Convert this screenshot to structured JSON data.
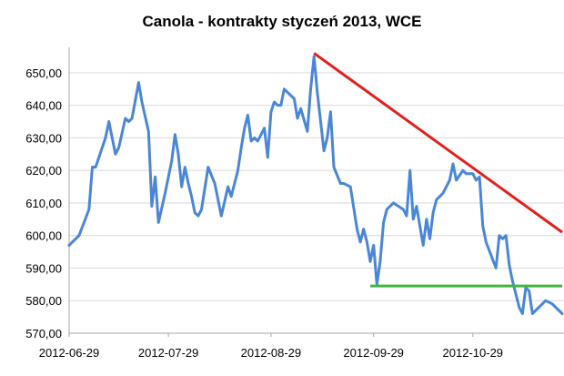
{
  "chart_data": {
    "type": "line",
    "title": "Canola - kontrakty styczeń 2013, WCE",
    "xlabel": "",
    "ylabel": "",
    "ylim": [
      570,
      655
    ],
    "yticks": [
      570,
      580,
      590,
      600,
      610,
      620,
      630,
      640,
      650
    ],
    "ytick_labels": [
      "570,00",
      "580,00",
      "590,00",
      "600,00",
      "610,00",
      "620,00",
      "630,00",
      "640,00",
      "650,00"
    ],
    "xticks": [
      "2012-06-29",
      "2012-07-29",
      "2012-08-29",
      "2012-09-29",
      "2012-10-29"
    ],
    "xlim": [
      "2012-06-29",
      "2012-11-25"
    ],
    "grid": true,
    "legend": "none",
    "colors": {
      "series": "#4a86d8",
      "resistance": "#e0201c",
      "support": "#3db83a",
      "grid": "#d9d9d9"
    },
    "series": [
      {
        "points": [
          [
            "2012-06-29",
            597
          ],
          [
            "2012-07-02",
            600
          ],
          [
            "2012-07-05",
            608
          ],
          [
            "2012-07-06",
            621
          ],
          [
            "2012-07-07",
            621
          ],
          [
            "2012-07-10",
            630
          ],
          [
            "2012-07-11",
            635
          ],
          [
            "2012-07-13",
            625
          ],
          [
            "2012-07-14",
            627
          ],
          [
            "2012-07-16",
            636
          ],
          [
            "2012-07-17",
            635
          ],
          [
            "2012-07-18",
            636
          ],
          [
            "2012-07-20",
            647
          ],
          [
            "2012-07-21",
            641
          ],
          [
            "2012-07-23",
            632
          ],
          [
            "2012-07-24",
            609
          ],
          [
            "2012-07-25",
            618
          ],
          [
            "2012-07-26",
            604
          ],
          [
            "2012-07-28",
            613
          ],
          [
            "2012-07-30",
            623
          ],
          [
            "2012-07-31",
            631
          ],
          [
            "2012-08-01",
            625
          ],
          [
            "2012-08-02",
            615
          ],
          [
            "2012-08-03",
            621
          ],
          [
            "2012-08-04",
            616
          ],
          [
            "2012-08-05",
            612
          ],
          [
            "2012-08-06",
            607
          ],
          [
            "2012-08-07",
            606
          ],
          [
            "2012-08-08",
            608
          ],
          [
            "2012-08-10",
            621
          ],
          [
            "2012-08-12",
            616
          ],
          [
            "2012-08-14",
            606
          ],
          [
            "2012-08-16",
            615
          ],
          [
            "2012-08-17",
            612
          ],
          [
            "2012-08-19",
            620
          ],
          [
            "2012-08-20",
            627
          ],
          [
            "2012-08-21",
            633
          ],
          [
            "2012-08-22",
            637
          ],
          [
            "2012-08-23",
            629
          ],
          [
            "2012-08-24",
            630
          ],
          [
            "2012-08-25",
            629
          ],
          [
            "2012-08-27",
            633
          ],
          [
            "2012-08-28",
            624
          ],
          [
            "2012-08-29",
            638
          ],
          [
            "2012-08-30",
            641
          ],
          [
            "2012-08-31",
            640
          ],
          [
            "2012-09-01",
            640
          ],
          [
            "2012-09-02",
            645
          ],
          [
            "2012-09-04",
            643
          ],
          [
            "2012-09-05",
            642
          ],
          [
            "2012-09-06",
            636
          ],
          [
            "2012-09-07",
            639
          ],
          [
            "2012-09-09",
            632
          ],
          [
            "2012-09-10",
            645
          ],
          [
            "2012-09-11",
            655
          ],
          [
            "2012-09-12",
            644
          ],
          [
            "2012-09-14",
            626
          ],
          [
            "2012-09-15",
            630
          ],
          [
            "2012-09-16",
            638
          ],
          [
            "2012-09-17",
            621
          ],
          [
            "2012-09-19",
            616
          ],
          [
            "2012-09-20",
            616
          ],
          [
            "2012-09-22",
            615
          ],
          [
            "2012-09-24",
            602
          ],
          [
            "2012-09-25",
            598
          ],
          [
            "2012-09-26",
            602
          ],
          [
            "2012-09-27",
            598
          ],
          [
            "2012-09-28",
            592
          ],
          [
            "2012-09-29",
            597
          ],
          [
            "2012-09-30",
            585
          ],
          [
            "2012-10-01",
            592
          ],
          [
            "2012-10-02",
            604
          ],
          [
            "2012-10-03",
            608
          ],
          [
            "2012-10-05",
            610
          ],
          [
            "2012-10-08",
            608
          ],
          [
            "2012-10-09",
            606
          ],
          [
            "2012-10-10",
            620
          ],
          [
            "2012-10-11",
            605
          ],
          [
            "2012-10-12",
            609
          ],
          [
            "2012-10-14",
            597
          ],
          [
            "2012-10-15",
            605
          ],
          [
            "2012-10-16",
            599
          ],
          [
            "2012-10-17",
            607
          ],
          [
            "2012-10-18",
            611
          ],
          [
            "2012-10-20",
            613
          ],
          [
            "2012-10-22",
            617
          ],
          [
            "2012-10-23",
            622
          ],
          [
            "2012-10-24",
            617
          ],
          [
            "2012-10-26",
            620
          ],
          [
            "2012-10-27",
            619
          ],
          [
            "2012-10-29",
            619
          ],
          [
            "2012-10-30",
            617
          ],
          [
            "2012-10-31",
            618
          ],
          [
            "2012-11-01",
            603
          ],
          [
            "2012-11-02",
            598
          ],
          [
            "2012-11-05",
            590
          ],
          [
            "2012-11-06",
            600
          ],
          [
            "2012-11-07",
            599
          ],
          [
            "2012-11-08",
            600
          ],
          [
            "2012-11-09",
            591
          ],
          [
            "2012-11-10",
            586
          ],
          [
            "2012-11-11",
            582
          ],
          [
            "2012-11-12",
            578
          ],
          [
            "2012-11-13",
            576
          ],
          [
            "2012-11-14",
            584
          ],
          [
            "2012-11-15",
            583
          ],
          [
            "2012-11-16",
            576
          ],
          [
            "2012-11-17",
            577
          ],
          [
            "2012-11-19",
            579
          ],
          [
            "2012-11-20",
            580
          ],
          [
            "2012-11-22",
            579
          ],
          [
            "2012-11-23",
            578
          ],
          [
            "2012-11-24",
            577
          ],
          [
            "2012-11-25",
            576
          ]
        ]
      }
    ],
    "trendlines": [
      {
        "kind": "resistance",
        "points": [
          [
            "2012-09-11",
            656
          ],
          [
            "2012-11-25",
            601
          ]
        ]
      },
      {
        "kind": "support",
        "points": [
          [
            "2012-09-28",
            584.5
          ],
          [
            "2012-11-25",
            584.5
          ]
        ]
      }
    ]
  }
}
